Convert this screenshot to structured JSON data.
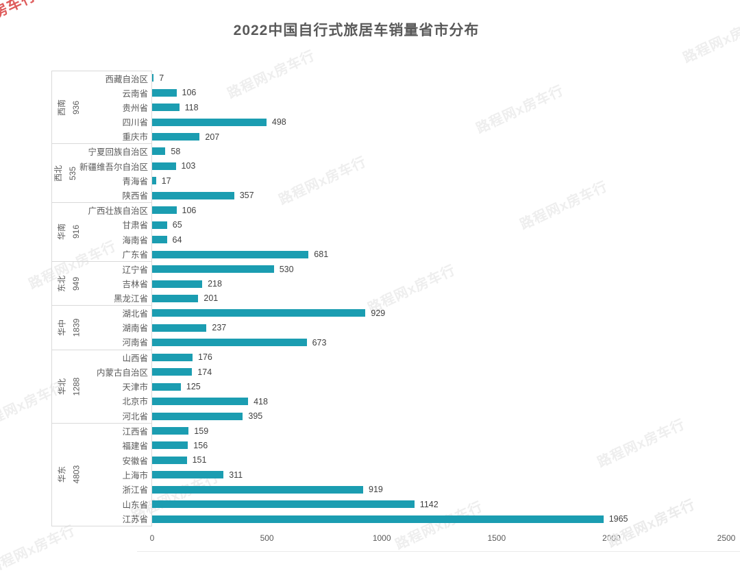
{
  "title": "2022中国自行式旅居车销量省市分布",
  "watermark": {
    "text": "路程网x房车行",
    "gray_color": "#eeeeee",
    "red_color": "#de5b5b"
  },
  "chart_data": {
    "type": "bar",
    "orientation": "horizontal",
    "title": "2022中国自行式旅居车销量省市分布",
    "xlabel": "",
    "ylabel": "",
    "bar_color": "#1b9db1",
    "value_label_color": "#404040",
    "category_label_color": "#595959",
    "axis_line_color": "#d9d9d9",
    "grid": false,
    "legend": false,
    "axis": {
      "min": 0,
      "max": 2500,
      "ticks": [
        0,
        500,
        1000,
        1500,
        2000,
        2500
      ]
    },
    "groups": [
      {
        "region": "西南",
        "total": 936,
        "items": [
          {
            "name": "西藏自治区",
            "value": 7
          },
          {
            "name": "云南省",
            "value": 106
          },
          {
            "name": "贵州省",
            "value": 118
          },
          {
            "name": "四川省",
            "value": 498
          },
          {
            "name": "重庆市",
            "value": 207
          }
        ]
      },
      {
        "region": "西北",
        "total": 535,
        "items": [
          {
            "name": "宁夏回族自治区",
            "value": 58
          },
          {
            "name": "新疆维吾尔自治区",
            "value": 103
          },
          {
            "name": "青海省",
            "value": 17
          },
          {
            "name": "陕西省",
            "value": 357
          }
        ]
      },
      {
        "region": "华南",
        "total": 916,
        "items": [
          {
            "name": "广西壮族自治区",
            "value": 106
          },
          {
            "name": "甘肃省",
            "value": 65
          },
          {
            "name": "海南省",
            "value": 64
          },
          {
            "name": "广东省",
            "value": 681
          }
        ]
      },
      {
        "region": "东北",
        "total": 949,
        "items": [
          {
            "name": "辽宁省",
            "value": 530
          },
          {
            "name": "吉林省",
            "value": 218
          },
          {
            "name": "黑龙江省",
            "value": 201
          }
        ]
      },
      {
        "region": "华中",
        "total": 1839,
        "items": [
          {
            "name": "湖北省",
            "value": 929
          },
          {
            "name": "湖南省",
            "value": 237
          },
          {
            "name": "河南省",
            "value": 673
          }
        ]
      },
      {
        "region": "华北",
        "total": 1288,
        "items": [
          {
            "name": "山西省",
            "value": 176
          },
          {
            "name": "内蒙古自治区",
            "value": 174
          },
          {
            "name": "天津市",
            "value": 125
          },
          {
            "name": "北京市",
            "value": 418
          },
          {
            "name": "河北省",
            "value": 395
          }
        ]
      },
      {
        "region": "华东",
        "total": 4803,
        "items": [
          {
            "name": "江西省",
            "value": 159
          },
          {
            "name": "福建省",
            "value": 156
          },
          {
            "name": "安徽省",
            "value": 151
          },
          {
            "name": "上海市",
            "value": 311
          },
          {
            "name": "浙江省",
            "value": 919
          },
          {
            "name": "山东省",
            "value": 1142
          },
          {
            "name": "江苏省",
            "value": 1965
          }
        ]
      }
    ]
  }
}
